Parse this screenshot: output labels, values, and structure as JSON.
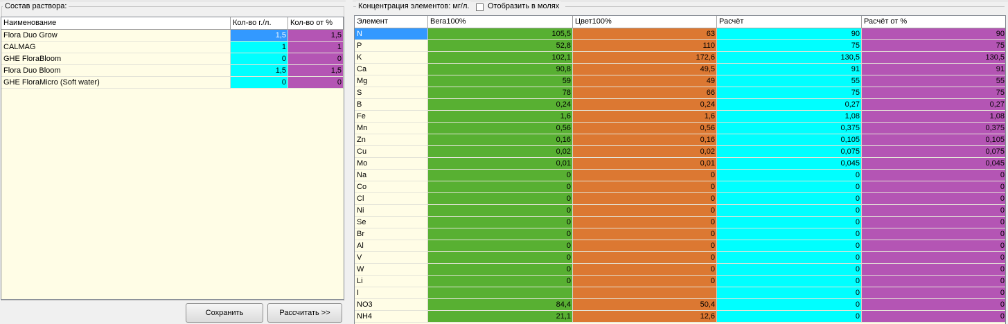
{
  "solution_panel": {
    "title": "Состав раствора:",
    "columns": [
      "Наименование",
      "Кол-во г./л.",
      "Кол-во от %"
    ],
    "rows": [
      {
        "name": "Flora Duo Grow",
        "grams": "1,5",
        "percent": "1,5"
      },
      {
        "name": "CALMAG",
        "grams": "1",
        "percent": "1"
      },
      {
        "name": "GHE FloraBloom",
        "grams": "0",
        "percent": "0"
      },
      {
        "name": "Flora Duo Bloom",
        "grams": "1,5",
        "percent": "1,5"
      },
      {
        "name": "GHE FloraMicro (Soft water)",
        "grams": "0",
        "percent": "0"
      }
    ],
    "save_label": "Сохранить",
    "calc_label": "Рассчитать >>"
  },
  "concentration_panel": {
    "title": "Концентрация элементов: мг/л.",
    "moles_label": "Отобразить в молях",
    "moles_checked": false,
    "columns": [
      "Элемент",
      "Вега100%",
      "Цвет100%",
      "Расчёт",
      "Расчёт от %"
    ],
    "rows": [
      {
        "el": "N",
        "vega": "105,5",
        "cvet": "63",
        "calc": "90",
        "calcp": "90"
      },
      {
        "el": "P",
        "vega": "52,8",
        "cvet": "110",
        "calc": "75",
        "calcp": "75"
      },
      {
        "el": "K",
        "vega": "102,1",
        "cvet": "172,6",
        "calc": "130,5",
        "calcp": "130,5"
      },
      {
        "el": "Ca",
        "vega": "90,8",
        "cvet": "49,5",
        "calc": "91",
        "calcp": "91"
      },
      {
        "el": "Mg",
        "vega": "59",
        "cvet": "49",
        "calc": "55",
        "calcp": "55"
      },
      {
        "el": "S",
        "vega": "78",
        "cvet": "66",
        "calc": "75",
        "calcp": "75"
      },
      {
        "el": "B",
        "vega": "0,24",
        "cvet": "0,24",
        "calc": "0,27",
        "calcp": "0,27"
      },
      {
        "el": "Fe",
        "vega": "1,6",
        "cvet": "1,6",
        "calc": "1,08",
        "calcp": "1,08"
      },
      {
        "el": "Mn",
        "vega": "0,56",
        "cvet": "0,56",
        "calc": "0,375",
        "calcp": "0,375"
      },
      {
        "el": "Zn",
        "vega": "0,16",
        "cvet": "0,16",
        "calc": "0,105",
        "calcp": "0,105"
      },
      {
        "el": "Cu",
        "vega": "0,02",
        "cvet": "0,02",
        "calc": "0,075",
        "calcp": "0,075"
      },
      {
        "el": "Mo",
        "vega": "0,01",
        "cvet": "0,01",
        "calc": "0,045",
        "calcp": "0,045"
      },
      {
        "el": "Na",
        "vega": "0",
        "cvet": "0",
        "calc": "0",
        "calcp": "0"
      },
      {
        "el": "Co",
        "vega": "0",
        "cvet": "0",
        "calc": "0",
        "calcp": "0"
      },
      {
        "el": "Cl",
        "vega": "0",
        "cvet": "0",
        "calc": "0",
        "calcp": "0"
      },
      {
        "el": "Ni",
        "vega": "0",
        "cvet": "0",
        "calc": "0",
        "calcp": "0"
      },
      {
        "el": "Se",
        "vega": "0",
        "cvet": "0",
        "calc": "0",
        "calcp": "0"
      },
      {
        "el": "Br",
        "vega": "0",
        "cvet": "0",
        "calc": "0",
        "calcp": "0"
      },
      {
        "el": "Al",
        "vega": "0",
        "cvet": "0",
        "calc": "0",
        "calcp": "0"
      },
      {
        "el": "V",
        "vega": "0",
        "cvet": "0",
        "calc": "0",
        "calcp": "0"
      },
      {
        "el": "W",
        "vega": "0",
        "cvet": "0",
        "calc": "0",
        "calcp": "0"
      },
      {
        "el": "Li",
        "vega": "0",
        "cvet": "0",
        "calc": "0",
        "calcp": "0"
      },
      {
        "el": "I",
        "vega": "",
        "cvet": "",
        "calc": "0",
        "calcp": "0"
      },
      {
        "el": "NO3",
        "vega": "84,4",
        "cvet": "50,4",
        "calc": "0",
        "calcp": "0"
      },
      {
        "el": "NH4",
        "vega": "21,1",
        "cvet": "12,6",
        "calc": "0",
        "calcp": "0"
      }
    ]
  },
  "colors": {
    "cyan": "#00ffff",
    "magenta": "#b455b4",
    "green": "#58b032",
    "orange": "#dc7832",
    "selection": "#3399ff",
    "grid_bg": "#fffde6"
  }
}
